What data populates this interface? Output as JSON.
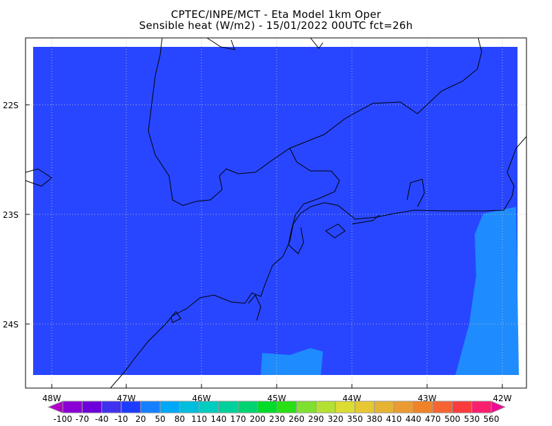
{
  "title": {
    "line1": "CPTEC/INPE/MCT -   Eta Model 1km Oper",
    "line2": "Sensible heat (W/m2) - 15/01/2022 00UTC fct=26h"
  },
  "map": {
    "lat_labels": [
      "22S",
      "23S",
      "24S"
    ],
    "lon_labels": [
      "48W",
      "47W",
      "46W",
      "45W",
      "44W",
      "43W",
      "42W"
    ],
    "land_color": "#2846ff",
    "ocean_color": "#1e8cff",
    "grid": true
  },
  "colorbar": {
    "levels": [
      "-100",
      "-70",
      "-40",
      "-10",
      "20",
      "50",
      "80",
      "110",
      "140",
      "170",
      "200",
      "230",
      "260",
      "290",
      "320",
      "350",
      "380",
      "410",
      "440",
      "470",
      "500",
      "530",
      "560"
    ],
    "below_color": "#b000c8",
    "above_color": "#f00a96",
    "colors": [
      "#8a00d4",
      "#6e00dc",
      "#4030f0",
      "#1e3cff",
      "#1480ff",
      "#00a8f8",
      "#00bedc",
      "#00cdc0",
      "#00d09c",
      "#00d470",
      "#00dc28",
      "#28e014",
      "#80e030",
      "#b4e032",
      "#dcdc32",
      "#e6c832",
      "#e6b432",
      "#eb9b32",
      "#f08228",
      "#f56432",
      "#fa3c3c",
      "#fa1e6e"
    ]
  }
}
